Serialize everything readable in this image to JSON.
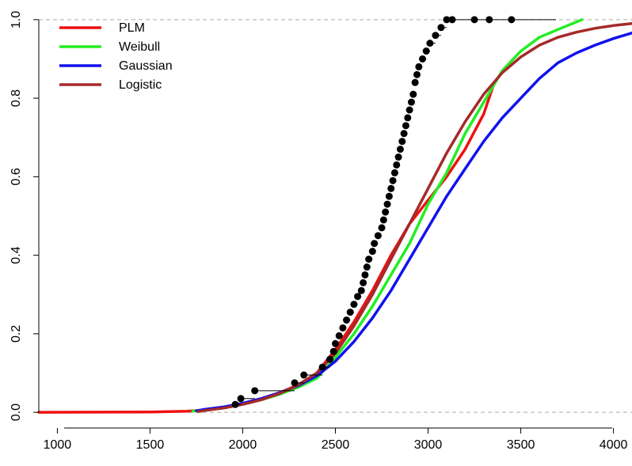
{
  "chart_data": {
    "type": "line",
    "title": "",
    "xlabel": "",
    "ylabel": "",
    "xlim": [
      900,
      4100
    ],
    "ylim": [
      -0.04,
      1.04
    ],
    "x_ticks": [
      {
        "value": 1000,
        "label": "1000"
      },
      {
        "value": 1500,
        "label": "1500"
      },
      {
        "value": 2000,
        "label": "2000"
      },
      {
        "value": 2500,
        "label": "2500"
      },
      {
        "value": 3000,
        "label": "3000"
      },
      {
        "value": 3500,
        "label": "3500"
      },
      {
        "value": 4000,
        "label": "4000"
      }
    ],
    "y_ticks": [
      {
        "value": 0.0,
        "label": "0.0"
      },
      {
        "value": 0.2,
        "label": "0.2"
      },
      {
        "value": 0.4,
        "label": "0.4"
      },
      {
        "value": 0.6,
        "label": "0.6"
      },
      {
        "value": 0.8,
        "label": "0.8"
      },
      {
        "value": 1.0,
        "label": "1.0"
      }
    ],
    "reference_lines": [
      0.0,
      1.0
    ],
    "legend_position": "top-left",
    "series": [
      {
        "name": "PLM",
        "color": "#ee1111",
        "x": [
          900,
          1500,
          1700,
          1800,
          1900,
          2000,
          2100,
          2200,
          2300,
          2400,
          2500,
          2600,
          2700,
          2800,
          2900,
          3000,
          3100,
          3200,
          3300,
          3350
        ],
        "y": [
          0.0,
          0.001,
          0.003,
          0.006,
          0.012,
          0.022,
          0.035,
          0.05,
          0.07,
          0.1,
          0.16,
          0.23,
          0.31,
          0.4,
          0.48,
          0.54,
          0.6,
          0.67,
          0.76,
          0.83
        ]
      },
      {
        "name": "Weibull",
        "color": "#22ee22",
        "x": [
          1730,
          1800,
          1900,
          2000,
          2100,
          2200,
          2300,
          2400,
          2500,
          2600,
          2700,
          2800,
          2900,
          3000,
          3100,
          3200,
          3300,
          3400,
          3500,
          3600,
          3700,
          3830
        ],
        "y": [
          0.003,
          0.007,
          0.013,
          0.021,
          0.032,
          0.046,
          0.064,
          0.087,
          0.14,
          0.2,
          0.27,
          0.35,
          0.43,
          0.53,
          0.61,
          0.71,
          0.79,
          0.87,
          0.92,
          0.955,
          0.975,
          1.0
        ]
      },
      {
        "name": "Gaussian",
        "color": "#1111ee",
        "x": [
          1750,
          1800,
          1900,
          2000,
          2100,
          2200,
          2300,
          2400,
          2500,
          2600,
          2700,
          2800,
          2900,
          3000,
          3100,
          3200,
          3300,
          3400,
          3500,
          3600,
          3700,
          3800,
          3900,
          4000,
          4100
        ],
        "y": [
          0.004,
          0.008,
          0.014,
          0.023,
          0.035,
          0.05,
          0.068,
          0.093,
          0.13,
          0.18,
          0.24,
          0.31,
          0.39,
          0.47,
          0.55,
          0.62,
          0.69,
          0.75,
          0.8,
          0.85,
          0.89,
          0.915,
          0.935,
          0.952,
          0.966
        ]
      },
      {
        "name": "Logistic",
        "color": "#a52a2a",
        "x": [
          1760,
          1800,
          1900,
          2000,
          2100,
          2200,
          2300,
          2400,
          2500,
          2600,
          2700,
          2800,
          2900,
          3000,
          3100,
          3200,
          3300,
          3400,
          3500,
          3600,
          3700,
          3800,
          3900,
          4000,
          4100
        ],
        "y": [
          0.002,
          0.005,
          0.011,
          0.02,
          0.032,
          0.048,
          0.07,
          0.1,
          0.15,
          0.22,
          0.3,
          0.39,
          0.48,
          0.57,
          0.66,
          0.74,
          0.81,
          0.865,
          0.905,
          0.935,
          0.955,
          0.968,
          0.978,
          0.985,
          0.99
        ]
      }
    ],
    "empirical_cdf": {
      "color": "#000000",
      "x": [
        1960,
        1990,
        2065,
        2280,
        2330,
        2430,
        2470,
        2490,
        2500,
        2520,
        2540,
        2560,
        2580,
        2600,
        2620,
        2640,
        2650,
        2660,
        2670,
        2680,
        2700,
        2710,
        2730,
        2750,
        2760,
        2770,
        2780,
        2790,
        2800,
        2810,
        2820,
        2830,
        2840,
        2850,
        2860,
        2870,
        2880,
        2890,
        2900,
        2910,
        2920,
        2930,
        2940,
        2950,
        2970,
        2990,
        3010,
        3040,
        3070,
        3100,
        3130,
        3250,
        3330,
        3450
      ],
      "y": [
        0.02,
        0.035,
        0.055,
        0.075,
        0.095,
        0.115,
        0.135,
        0.155,
        0.175,
        0.195,
        0.215,
        0.235,
        0.255,
        0.275,
        0.295,
        0.31,
        0.33,
        0.35,
        0.37,
        0.39,
        0.41,
        0.43,
        0.45,
        0.47,
        0.49,
        0.51,
        0.53,
        0.55,
        0.57,
        0.59,
        0.61,
        0.63,
        0.65,
        0.67,
        0.69,
        0.71,
        0.73,
        0.75,
        0.77,
        0.79,
        0.81,
        0.84,
        0.86,
        0.88,
        0.9,
        0.92,
        0.94,
        0.96,
        0.98,
        1.0,
        1.0,
        1.0,
        1.0,
        1.0
      ],
      "x_end": 3690
    }
  }
}
